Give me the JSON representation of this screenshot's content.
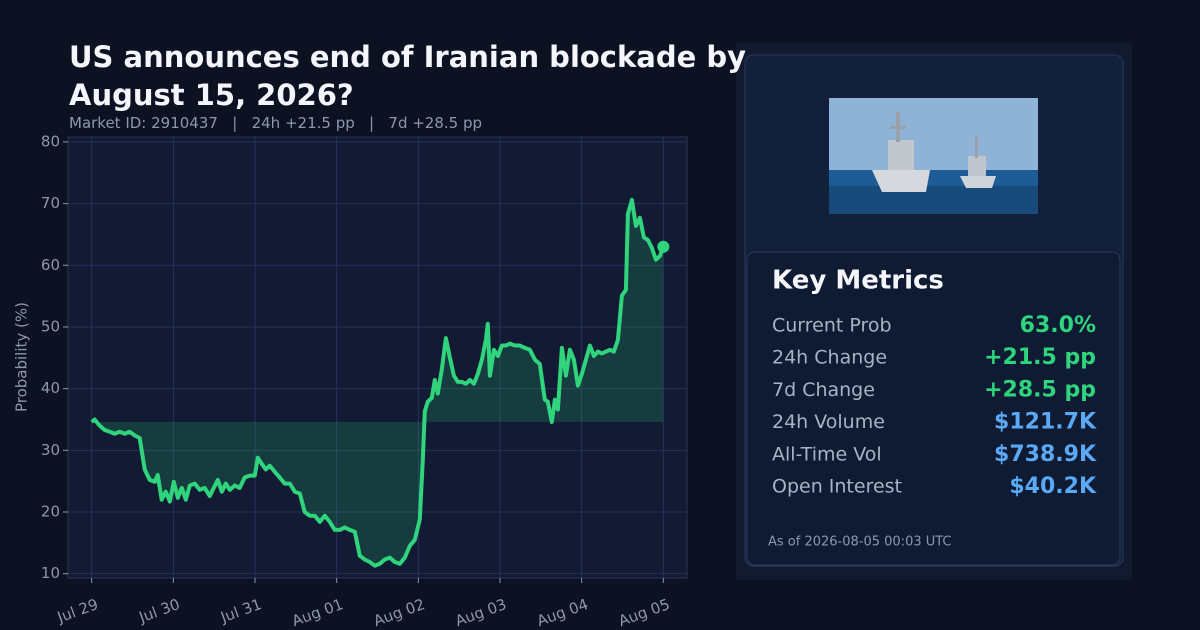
{
  "chart_data": {
    "type": "line",
    "title": "US announces end of Iranian blockade by August 15, 2026?",
    "subtitle": "Market ID: 2910437   |   24h +21.5 pp   |   7d +28.5 pp",
    "y_label": "Probability (%)",
    "xlim": [
      -0.29,
      7.29
    ],
    "xticks": [
      {
        "value": 0,
        "label": "Jul 29"
      },
      {
        "value": 1,
        "label": "Jul 30"
      },
      {
        "value": 2,
        "label": "Jul 31"
      },
      {
        "value": 3,
        "label": "Aug 01"
      },
      {
        "value": 4,
        "label": "Aug 02"
      },
      {
        "value": 5,
        "label": "Aug 03"
      },
      {
        "value": 6,
        "label": "Aug 04"
      },
      {
        "value": 7,
        "label": "Aug 05"
      }
    ],
    "ylim": [
      9.3,
      80.8
    ],
    "yticks": [
      10,
      20,
      30,
      40,
      50,
      60,
      70,
      80
    ],
    "grid": true,
    "series": [
      {
        "name": "Probability",
        "color": "#2fd47c",
        "x": [
          0,
          0.037,
          0.098,
          0.159,
          0.221,
          0.282,
          0.343,
          0.404,
          0.466,
          0.527,
          0.588,
          0.649,
          0.711,
          0.772,
          0.809,
          0.858,
          0.907,
          0.956,
          1.005,
          1.054,
          1.103,
          1.152,
          1.201,
          1.262,
          1.323,
          1.384,
          1.446,
          1.495,
          1.544,
          1.593,
          1.642,
          1.691,
          1.752,
          1.813,
          1.874,
          1.936,
          1.997,
          2.034,
          2.083,
          2.132,
          2.181,
          2.242,
          2.303,
          2.364,
          2.426,
          2.487,
          2.548,
          2.609,
          2.671,
          2.732,
          2.793,
          2.854,
          2.916,
          2.977,
          3.038,
          3.099,
          3.161,
          3.222,
          3.283,
          3.344,
          3.406,
          3.467,
          3.528,
          3.589,
          3.651,
          3.712,
          3.773,
          3.834,
          3.896,
          3.957,
          4.018,
          4.055,
          4.079,
          4.116,
          4.165,
          4.202,
          4.239,
          4.288,
          4.337,
          4.386,
          4.435,
          4.484,
          4.533,
          4.582,
          4.631,
          4.68,
          4.729,
          4.778,
          4.827,
          4.851,
          4.876,
          4.925,
          4.974,
          5.023,
          5.072,
          5.121,
          5.182,
          5.243,
          5.304,
          5.366,
          5.427,
          5.488,
          5.549,
          5.586,
          5.635,
          5.672,
          5.709,
          5.758,
          5.807,
          5.856,
          5.905,
          5.954,
          6.003,
          6.052,
          6.101,
          6.15,
          6.199,
          6.248,
          6.297,
          6.346,
          6.395,
          6.444,
          6.493,
          6.542,
          6.566,
          6.615,
          6.664,
          6.713,
          6.762,
          6.811,
          6.86,
          6.909,
          6.958,
          7.0
        ],
        "values": [
          34.6,
          35.0,
          34.0,
          33.3,
          33.0,
          32.7,
          33.0,
          32.7,
          33.0,
          32.4,
          32.0,
          26.9,
          25.2,
          24.9,
          26.0,
          22.0,
          23.3,
          21.7,
          24.9,
          22.3,
          23.9,
          22.0,
          24.3,
          24.6,
          23.6,
          23.9,
          22.6,
          23.9,
          25.2,
          23.3,
          24.6,
          23.6,
          24.3,
          23.9,
          25.6,
          25.9,
          25.9,
          28.8,
          27.8,
          26.9,
          27.5,
          26.5,
          25.6,
          24.6,
          24.6,
          23.3,
          23.0,
          20.0,
          19.4,
          19.4,
          18.4,
          19.4,
          18.4,
          17.1,
          17.1,
          17.5,
          17.1,
          16.8,
          12.9,
          12.3,
          11.9,
          11.3,
          11.6,
          12.3,
          12.6,
          11.9,
          11.6,
          12.6,
          14.5,
          15.5,
          18.8,
          28.5,
          36.3,
          37.9,
          38.5,
          41.4,
          39.2,
          43.1,
          48.2,
          45.0,
          42.1,
          41.1,
          41.1,
          40.8,
          41.4,
          40.8,
          42.4,
          44.7,
          47.9,
          50.5,
          42.1,
          46.3,
          45.3,
          47.0,
          47.0,
          47.3,
          47.0,
          47.0,
          46.6,
          46.3,
          44.7,
          44.0,
          38.2,
          37.9,
          34.6,
          38.2,
          36.6,
          46.6,
          42.1,
          46.3,
          44.7,
          40.5,
          42.4,
          44.7,
          47.0,
          45.3,
          46.0,
          45.7,
          46.0,
          46.3,
          46.0,
          47.9,
          55.1,
          56.0,
          68.3,
          70.6,
          66.4,
          67.7,
          64.5,
          64.1,
          62.8,
          60.9,
          61.5,
          63.0
        ]
      }
    ]
  },
  "panel": {
    "title": "Key Metrics",
    "metrics": [
      {
        "label": "Current Prob",
        "value": "63.0%",
        "color": "#2fd47c"
      },
      {
        "label": "24h Change",
        "value": "+21.5 pp",
        "color": "#2fd47c"
      },
      {
        "label": "7d Change",
        "value": "+28.5 pp",
        "color": "#2fd47c"
      },
      {
        "label": "24h Volume",
        "value": "$121.7K",
        "color": "#5aa9f5"
      },
      {
        "label": "All-Time Vol",
        "value": "$738.9K",
        "color": "#5aa9f5"
      },
      {
        "label": "Open Interest",
        "value": "$40.2K",
        "color": "#5aa9f5"
      }
    ],
    "footer": "As of 2026-08-05 00:03 UTC"
  }
}
